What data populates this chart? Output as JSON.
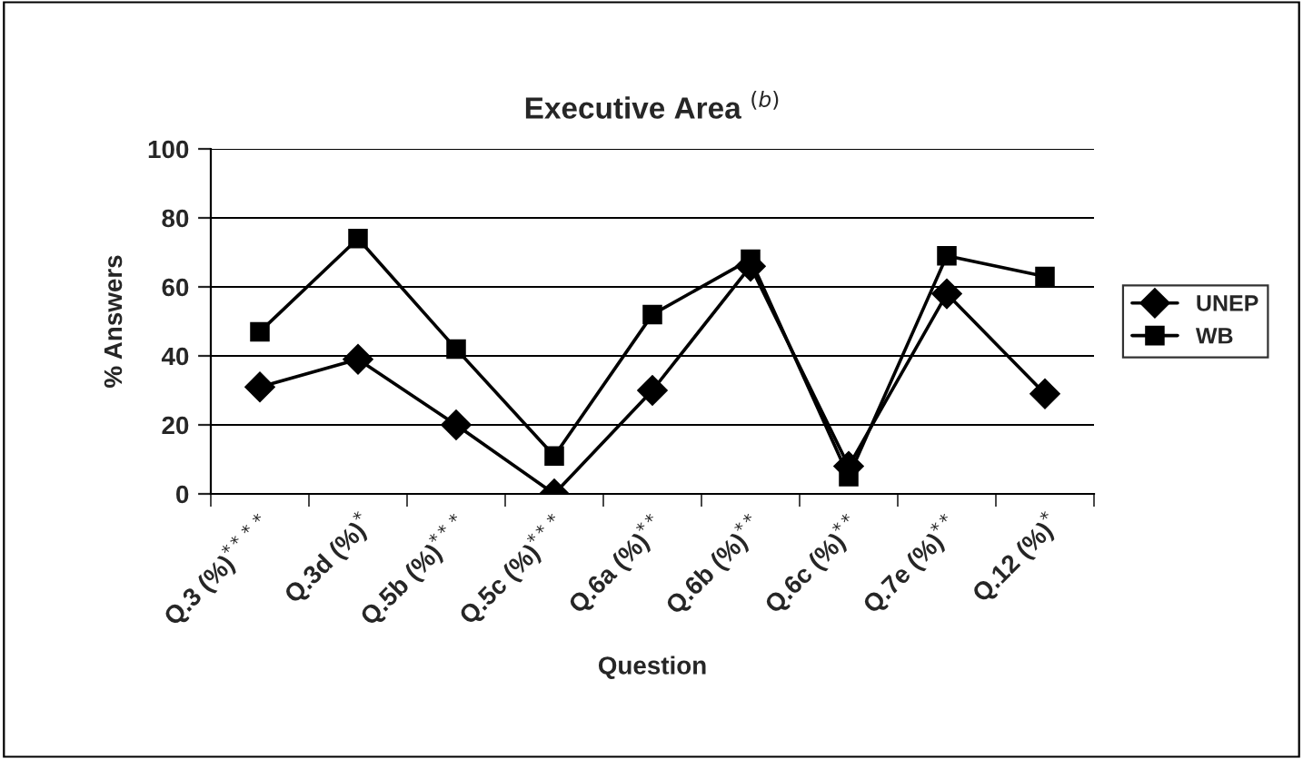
{
  "chart_data": {
    "type": "line",
    "title": "Executive Area $^{(b)}$",
    "xlabel": "Question",
    "ylabel": "% Answers",
    "categories": [
      "Q.3 (%)$^{****}$",
      "Q.3d (%)$^{*}$",
      "Q.5b (%)$^{***}$",
      "Q.5c (%)$^{***}$",
      "Q.6a (%)$^{**}$",
      "Q.6b (%)$^{**}$",
      "Q.6c (%)$^{**}$",
      "Q.7e (%)$^{**}$",
      "Q.12 (%)$^{*}$"
    ],
    "series": [
      {
        "name": "UNEP",
        "color": "#000000",
        "marker": "diamond",
        "values": [
          31,
          39,
          20,
          0,
          30,
          66,
          8,
          58,
          29
        ]
      },
      {
        "name": "WB",
        "color": "#000000",
        "marker": "square",
        "values": [
          47,
          74,
          42,
          11,
          52,
          68,
          5,
          69,
          63
        ]
      }
    ],
    "ylim": [
      0,
      100
    ],
    "yticks": [
      0,
      20,
      40,
      60,
      80,
      100
    ],
    "grid": "y",
    "legend": "right",
    "line_style": "solid"
  }
}
